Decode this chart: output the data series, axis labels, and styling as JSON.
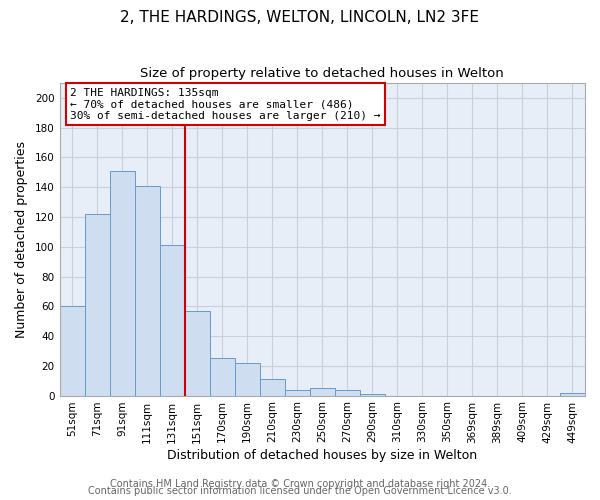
{
  "title": "2, THE HARDINGS, WELTON, LINCOLN, LN2 3FE",
  "subtitle": "Size of property relative to detached houses in Welton",
  "xlabel": "Distribution of detached houses by size in Welton",
  "ylabel": "Number of detached properties",
  "bar_labels": [
    "51sqm",
    "71sqm",
    "91sqm",
    "111sqm",
    "131sqm",
    "151sqm",
    "170sqm",
    "190sqm",
    "210sqm",
    "230sqm",
    "250sqm",
    "270sqm",
    "290sqm",
    "310sqm",
    "330sqm",
    "350sqm",
    "369sqm",
    "389sqm",
    "409sqm",
    "429sqm",
    "449sqm"
  ],
  "bar_values": [
    60,
    122,
    151,
    141,
    101,
    57,
    25,
    22,
    11,
    4,
    5,
    4,
    1,
    0,
    0,
    0,
    0,
    0,
    0,
    0,
    2
  ],
  "bar_color": "#cfddf0",
  "bar_edge_color": "#6899cc",
  "vline_x_index": 4,
  "vline_color": "#cc0000",
  "annotation_title": "2 THE HARDINGS: 135sqm",
  "annotation_line1": "← 70% of detached houses are smaller (486)",
  "annotation_line2": "30% of semi-detached houses are larger (210) →",
  "annotation_box_color": "#ffffff",
  "annotation_box_edge_color": "#cc0000",
  "ylim": [
    0,
    210
  ],
  "yticks": [
    0,
    20,
    40,
    60,
    80,
    100,
    120,
    140,
    160,
    180,
    200
  ],
  "footer1": "Contains HM Land Registry data © Crown copyright and database right 2024.",
  "footer2": "Contains public sector information licensed under the Open Government Licence v3.0.",
  "background_color": "#ffffff",
  "plot_bg_color": "#e8eef8",
  "grid_color": "#c8d0e0",
  "title_fontsize": 11,
  "subtitle_fontsize": 9.5,
  "axis_label_fontsize": 9,
  "tick_fontsize": 7.5,
  "annotation_fontsize": 8,
  "footer_fontsize": 7
}
